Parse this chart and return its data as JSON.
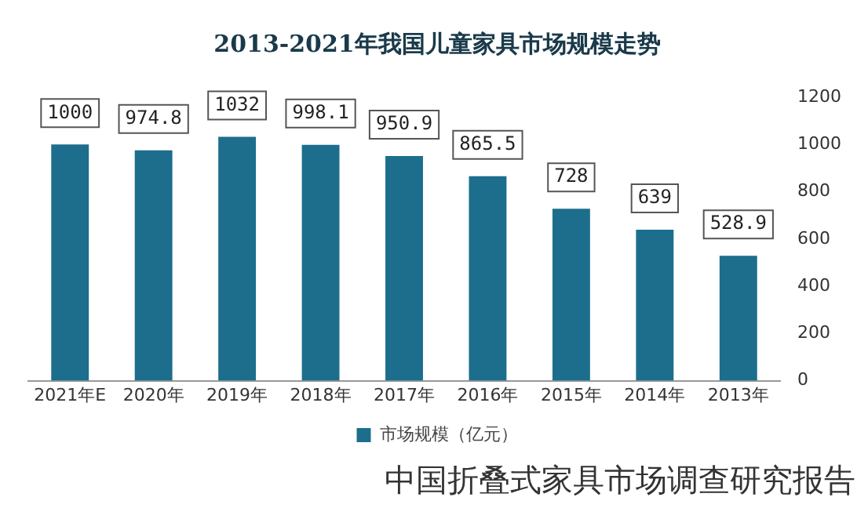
{
  "chart_data": {
    "type": "bar",
    "title": "2013-2021年我国儿童家具市场规模走势",
    "categories": [
      "2021年E",
      "2020年",
      "2019年",
      "2018年",
      "2017年",
      "2016年",
      "2015年",
      "2014年",
      "2013年"
    ],
    "series": [
      {
        "name": "市场规模（亿元）",
        "color": "#1c6e8c",
        "values": [
          1000,
          974.8,
          1032,
          998.1,
          950.9,
          865.5,
          728,
          639,
          528.9
        ]
      }
    ],
    "ylim": [
      0,
      1200
    ],
    "yticks": [
      0,
      200,
      400,
      600,
      800,
      1000,
      1200
    ],
    "grid": false,
    "legend": "bottom",
    "data_labels": true,
    "annotations": [
      "中国折叠式家具市场调查研究报告"
    ]
  }
}
